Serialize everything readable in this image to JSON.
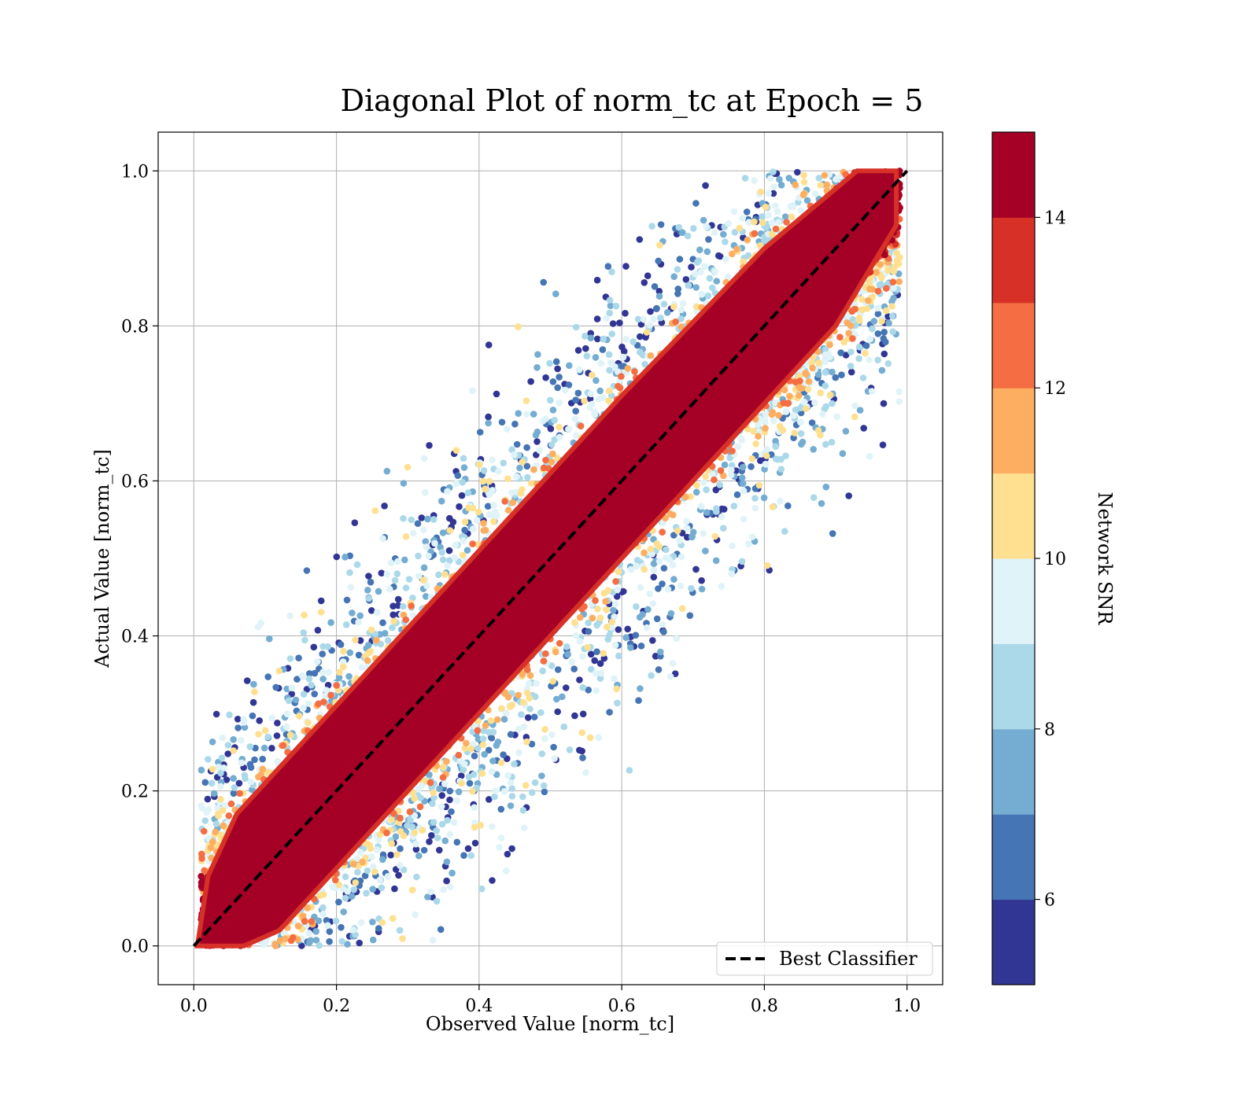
{
  "chart_data": {
    "type": "scatter",
    "title": "Diagonal Plot of norm_tc at Epoch = 5",
    "xlabel": "Observed Value [norm_tc]",
    "ylabel": "Actual Value [norm_tc]",
    "xlim": [
      -0.05,
      1.05
    ],
    "ylim": [
      -0.05,
      1.05
    ],
    "x_ticks": [
      0.0,
      0.2,
      0.4,
      0.6,
      0.8,
      1.0
    ],
    "y_ticks": [
      0.0,
      0.2,
      0.4,
      0.6,
      0.8,
      1.0
    ],
    "x_tick_labels": [
      "0.0",
      "0.2",
      "0.4",
      "0.6",
      "0.8",
      "1.0"
    ],
    "y_tick_labels": [
      "0.0",
      "0.2",
      "0.4",
      "0.6",
      "0.8",
      "1.0"
    ],
    "grid": true,
    "reference_line": {
      "label": "Best Classifier",
      "x": [
        0.0,
        1.0
      ],
      "y": [
        0.0,
        1.0
      ],
      "style": "dashed",
      "color": "#000000"
    },
    "legend_position": "lower-right",
    "colorbar": {
      "label": "Network SNR",
      "range": [
        5,
        15
      ],
      "ticks": [
        6,
        8,
        10,
        12,
        14
      ],
      "tick_labels": [
        "6",
        "8",
        "10",
        "12",
        "14"
      ],
      "bins": 10,
      "colors": [
        "#313695",
        "#4575b4",
        "#74add1",
        "#abd9e9",
        "#e0f3f8",
        "#fee090",
        "#fdae61",
        "#f46d43",
        "#d73027",
        "#a50026"
      ]
    },
    "scatter_description": {
      "x_range": [
        0.0,
        1.0
      ],
      "y_range": [
        0.0,
        1.0
      ],
      "color_variable": "Network SNR"
    }
  }
}
